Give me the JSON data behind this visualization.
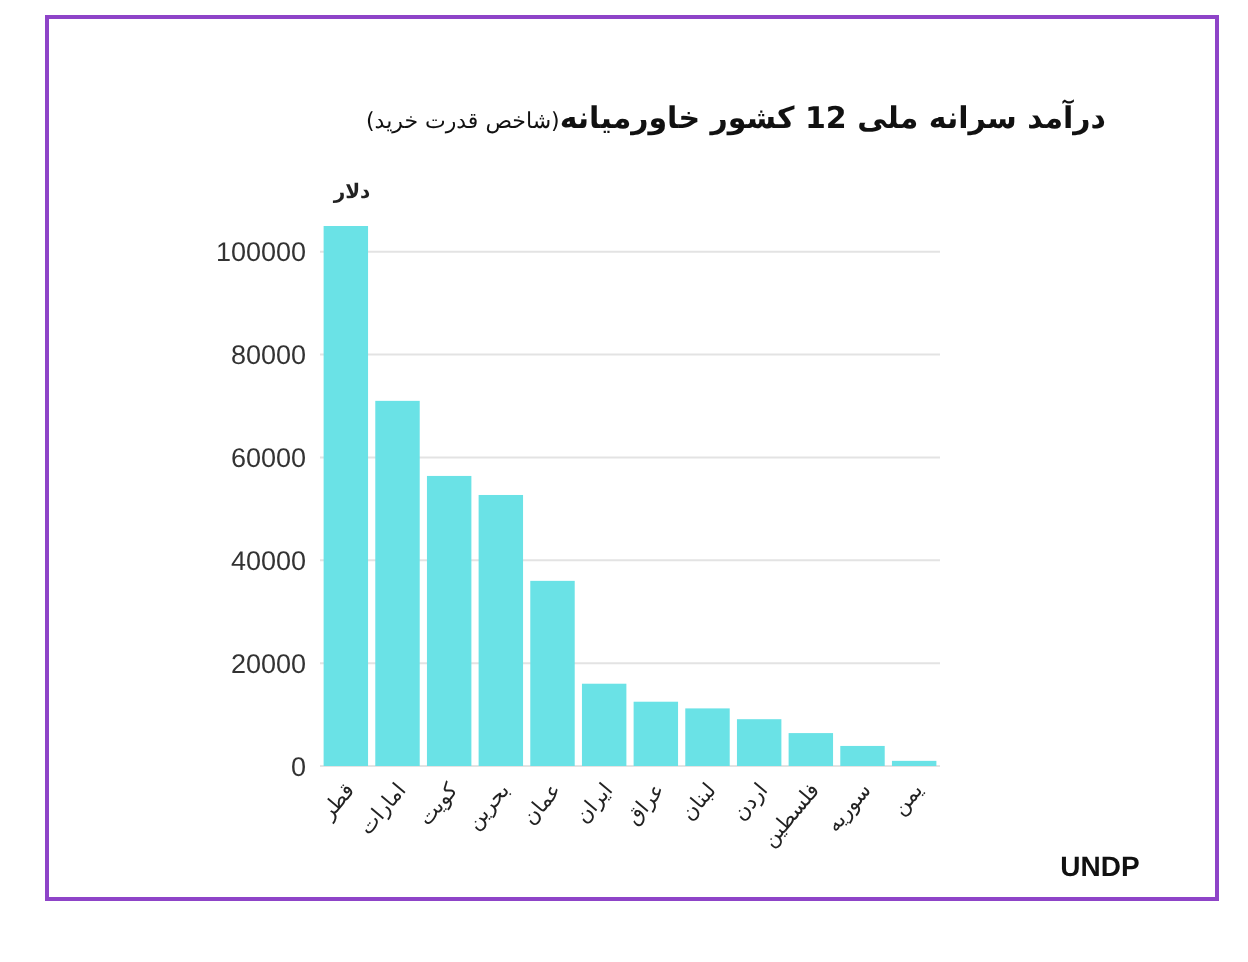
{
  "chart_data": {
    "type": "bar",
    "title": "درآمد سرانه ملی 12 کشور خاورمیانه",
    "subtitle": "(شاخص قدرت خرید)",
    "ylabel": "دلار",
    "categories": [
      "قطر",
      "امارات",
      "کویت",
      "بحرین",
      "عمان",
      "ایران",
      "عراق",
      "لبنان",
      "اردن",
      "فلسطین",
      "سوریه",
      "یمن"
    ],
    "values": [
      105000,
      71000,
      56400,
      52700,
      36000,
      16000,
      12500,
      11200,
      9100,
      6400,
      3900,
      1000
    ],
    "color": "#6ae2e6",
    "ylim": [
      0,
      105000
    ],
    "yticks": [
      0,
      20000,
      40000,
      60000,
      80000,
      100000
    ],
    "grid": "y",
    "annotations": [
      "UNDP"
    ]
  }
}
